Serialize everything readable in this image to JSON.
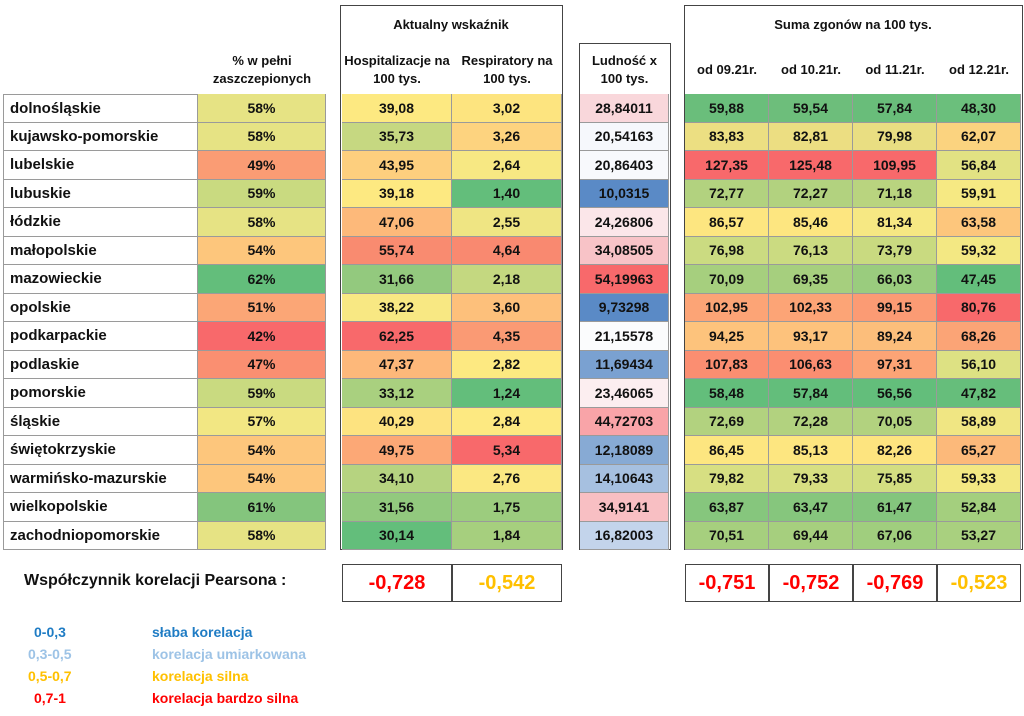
{
  "headers": {
    "vacc": "% w pełni zaszczepionych",
    "group_current": "Aktualny wskaźnik",
    "hosp": "Hospitalizacje na 100 tys.",
    "resp": "Respiratory na 100 tys.",
    "pop": "Ludność x 100 tys.",
    "group_deaths": "Suma zgonów na 100 tys.",
    "d1": "od 09.21r.",
    "d2": "od 10.21r.",
    "d3": "od 11.21r.",
    "d4": "od 12.21r."
  },
  "chart_data": {
    "type": "table",
    "rows": [
      {
        "region": "dolnośląskie",
        "vacc": "58%",
        "hosp": "39,08",
        "resp": "3,02",
        "pop": "28,84011",
        "d1": "59,88",
        "d2": "59,54",
        "d3": "57,84",
        "d4": "48,30",
        "colors": {
          "vacc": "#e6e384",
          "hosp": "#fde981",
          "resp": "#fde47f",
          "pop": "#f9d7db",
          "d1": "#6abe7b",
          "d2": "#6dbe7b",
          "d3": "#69bd7a",
          "d4": "#6bbf7c"
        }
      },
      {
        "region": "kujawsko-pomorskie",
        "vacc": "58%",
        "hosp": "35,73",
        "resp": "3,26",
        "pop": "20,54163",
        "d1": "83,83",
        "d2": "82,81",
        "d3": "79,98",
        "d4": "62,07",
        "colors": {
          "vacc": "#e6e384",
          "hosp": "#c6d881",
          "resp": "#fdd37f",
          "pop": "#f6f8fc",
          "d1": "#ecdf82",
          "d2": "#ecde82",
          "d3": "#e9de82",
          "d4": "#fbd37f"
        }
      },
      {
        "region": "lubelskie",
        "vacc": "49%",
        "hosp": "43,95",
        "resp": "2,64",
        "pop": "20,86403",
        "d1": "127,35",
        "d2": "125,48",
        "d3": "109,95",
        "d4": "56,84",
        "colors": {
          "vacc": "#fa9c74",
          "hosp": "#fdcf7e",
          "resp": "#f7e883",
          "pop": "#f8f9fc",
          "d1": "#f8696b",
          "d2": "#f8696b",
          "d3": "#f8696b",
          "d4": "#e2e283"
        }
      },
      {
        "region": "lubuskie",
        "vacc": "59%",
        "hosp": "39,18",
        "resp": "1,40",
        "pop": "10,0315",
        "d1": "72,77",
        "d2": "72,27",
        "d3": "71,18",
        "d4": "59,91",
        "colors": {
          "vacc": "#c9da80",
          "hosp": "#fde981",
          "resp": "#63be7b",
          "pop": "#5a8ac6",
          "d1": "#b2d27f",
          "d2": "#b2d27f",
          "d3": "#b9d47f",
          "d4": "#f6e983"
        }
      },
      {
        "region": "łódzkie",
        "vacc": "58%",
        "hosp": "47,06",
        "resp": "2,55",
        "pop": "24,26806",
        "d1": "86,57",
        "d2": "85,46",
        "d3": "81,34",
        "d4": "63,58",
        "colors": {
          "vacc": "#e6e384",
          "hosp": "#fdb97a",
          "resp": "#efe583",
          "pop": "#fbe6e9",
          "d1": "#fde680",
          "d2": "#fde680",
          "d3": "#f6e883",
          "d4": "#fdc67c"
        }
      },
      {
        "region": "małopolskie",
        "vacc": "54%",
        "hosp": "55,74",
        "resp": "4,64",
        "pop": "34,08505",
        "d1": "76,98",
        "d2": "76,13",
        "d3": "73,79",
        "d4": "59,32",
        "colors": {
          "vacc": "#fdc67c",
          "hosp": "#f98b70",
          "resp": "#f98970",
          "pop": "#f8c3c7",
          "d1": "#cbdb81",
          "d2": "#cbdb81",
          "d3": "#c9da80",
          "d4": "#f3e883"
        }
      },
      {
        "region": "mazowieckie",
        "vacc": "62%",
        "hosp": "31,66",
        "resp": "2,18",
        "pop": "54,19963",
        "d1": "70,09",
        "d2": "69,35",
        "d3": "66,03",
        "d4": "47,45",
        "colors": {
          "vacc": "#63be7b",
          "hosp": "#93c97e",
          "resp": "#c4d880",
          "pop": "#f8696b",
          "d1": "#a6cf7e",
          "d2": "#a6cf7e",
          "d3": "#9acc7e",
          "d4": "#63be7b"
        }
      },
      {
        "region": "opolskie",
        "vacc": "51%",
        "hosp": "38,22",
        "resp": "3,60",
        "pop": "9,73298",
        "d1": "102,95",
        "d2": "102,33",
        "d3": "99,15",
        "d4": "80,76",
        "colors": {
          "vacc": "#fba676",
          "hosp": "#f8e883",
          "resp": "#fdc07b",
          "pop": "#5a8ac6",
          "d1": "#fca476",
          "d2": "#fca476",
          "d3": "#fb9b74",
          "d4": "#f8696b"
        }
      },
      {
        "region": "podkarpackie",
        "vacc": "42%",
        "hosp": "62,25",
        "resp": "4,35",
        "pop": "21,15578",
        "d1": "94,25",
        "d2": "93,17",
        "d3": "89,24",
        "d4": "68,26",
        "colors": {
          "vacc": "#f8696b",
          "hosp": "#f8696b",
          "resp": "#fa9a74",
          "pop": "#fbfcfd",
          "d1": "#fdc37c",
          "d2": "#fdc27c",
          "d3": "#fcbe7b",
          "d4": "#fba476"
        }
      },
      {
        "region": "podlaskie",
        "vacc": "47%",
        "hosp": "47,37",
        "resp": "2,82",
        "pop": "11,69434",
        "d1": "107,83",
        "d2": "106,63",
        "d3": "97,31",
        "d4": "56,10",
        "colors": {
          "vacc": "#fa8f71",
          "hosp": "#fdb87a",
          "resp": "#fde981",
          "pop": "#7aa1d1",
          "d1": "#fb8e71",
          "d2": "#fb8e71",
          "d3": "#fca476",
          "d4": "#dde183"
        }
      },
      {
        "region": "pomorskie",
        "vacc": "59%",
        "hosp": "33,12",
        "resp": "1,24",
        "pop": "23,46065",
        "d1": "58,48",
        "d2": "57,84",
        "d3": "56,56",
        "d4": "47,82",
        "colors": {
          "vacc": "#c9da80",
          "hosp": "#a9d07f",
          "resp": "#63be7b",
          "pop": "#fceef0",
          "d1": "#63be7b",
          "d2": "#63be7b",
          "d3": "#63be7b",
          "d4": "#66be7b"
        }
      },
      {
        "region": "śląskie",
        "vacc": "57%",
        "hosp": "40,29",
        "resp": "2,84",
        "pop": "44,72703",
        "d1": "72,69",
        "d2": "72,28",
        "d3": "70,05",
        "d4": "58,89",
        "colors": {
          "vacc": "#f2e783",
          "hosp": "#fde380",
          "resp": "#fde981",
          "pop": "#f9a4a8",
          "d1": "#b2d27f",
          "d2": "#b2d27f",
          "d3": "#b2d27f",
          "d4": "#f0e683"
        }
      },
      {
        "region": "świętokrzyskie",
        "vacc": "54%",
        "hosp": "49,75",
        "resp": "5,34",
        "pop": "12,18089",
        "d1": "86,45",
        "d2": "85,13",
        "d3": "82,26",
        "d4": "65,27",
        "colors": {
          "vacc": "#fdc67c",
          "hosp": "#fca876",
          "resp": "#f8696b",
          "pop": "#87aad4",
          "d1": "#fde680",
          "d2": "#fde680",
          "d3": "#fde47f",
          "d4": "#fcb97a"
        }
      },
      {
        "region": "warmińsko-mazurskie",
        "vacc": "54%",
        "hosp": "34,10",
        "resp": "2,76",
        "pop": "14,10643",
        "d1": "79,82",
        "d2": "79,33",
        "d3": "75,85",
        "d4": "59,33",
        "colors": {
          "vacc": "#fdc67c",
          "hosp": "#b6d380",
          "resp": "#fbe882",
          "pop": "#a6c0e0",
          "d1": "#d7df82",
          "d2": "#d7df82",
          "d3": "#d3de81",
          "d4": "#f3e883"
        }
      },
      {
        "region": "wielkopolskie",
        "vacc": "61%",
        "hosp": "31,56",
        "resp": "1,75",
        "pop": "34,9141",
        "d1": "63,87",
        "d2": "63,47",
        "d3": "61,47",
        "d4": "52,84",
        "colors": {
          "vacc": "#84c57d",
          "hosp": "#92c97e",
          "resp": "#9ccc7e",
          "pop": "#f8bfc3",
          "d1": "#86c67d",
          "d2": "#86c67d",
          "d3": "#84c57d",
          "d4": "#a4cf7e"
        }
      },
      {
        "region": "zachodniopomorskie",
        "vacc": "58%",
        "hosp": "30,14",
        "resp": "1,84",
        "pop": "16,82003",
        "d1": "70,51",
        "d2": "69,44",
        "d3": "67,06",
        "d4": "53,27",
        "colors": {
          "vacc": "#e6e384",
          "hosp": "#63be7b",
          "resp": "#a6cf7e",
          "pop": "#c3d4eb",
          "d1": "#a6cf7e",
          "d2": "#a6cf7e",
          "d3": "#a0ce7e",
          "d4": "#a9d07f"
        }
      }
    ]
  },
  "correlation": {
    "label": "Współczynnik korelacji Pearsona :",
    "hosp": {
      "text": "-0,728",
      "color": "#ff0000"
    },
    "resp": {
      "text": "-0,542",
      "color": "#ffc000"
    },
    "d1": {
      "text": "-0,751",
      "color": "#ff0000"
    },
    "d2": {
      "text": "-0,752",
      "color": "#ff0000"
    },
    "d3": {
      "text": "-0,769",
      "color": "#ff0000"
    },
    "d4": {
      "text": "-0,523",
      "color": "#ffc000"
    }
  },
  "legend": [
    {
      "range": "0-0,3",
      "text": "słaba korelacja",
      "color": "#1f7cc4"
    },
    {
      "range": "0,3-0,5",
      "text": "korelacja umiarkowana",
      "color": "#9dc3e6"
    },
    {
      "range": "0,5-0,7",
      "text": "korelacja silna",
      "color": "#ffc000"
    },
    {
      "range": "0,7-1",
      "text": "korelacja bardzo silna",
      "color": "#ff0000"
    }
  ]
}
